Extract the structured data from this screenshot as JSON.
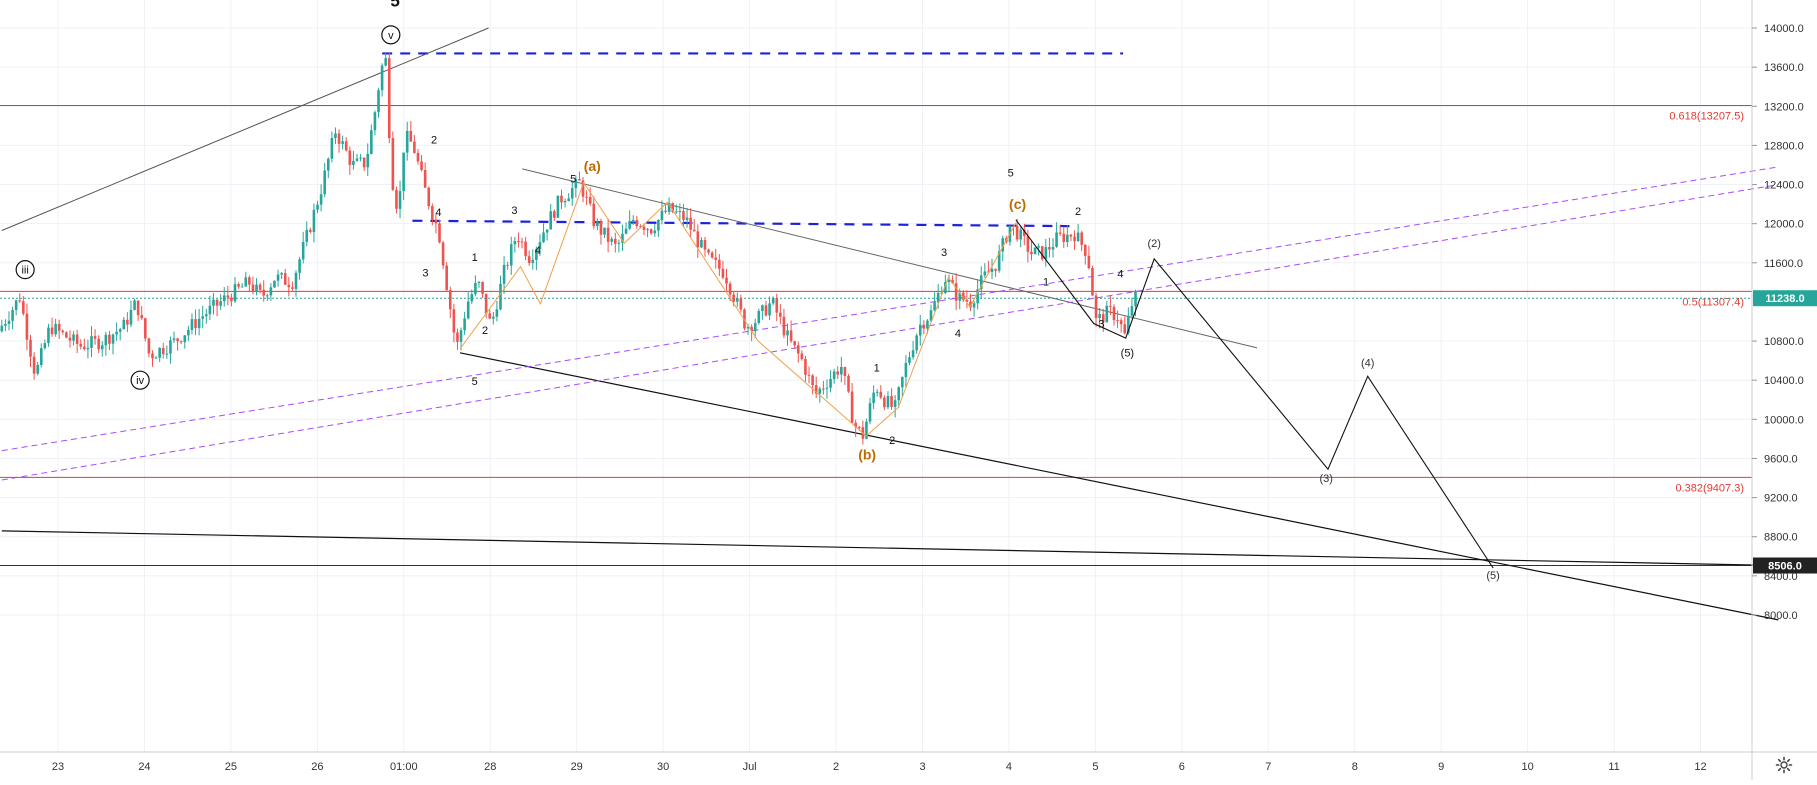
{
  "chart_data": {
    "type": "candlestick",
    "title": "",
    "xlabel": "",
    "ylabel": "",
    "colors": {
      "up": "#26a69a",
      "down": "#ef5350",
      "fib": "#e53935",
      "dashed_level": "#1e22d6",
      "channel": "#a64dff",
      "abc": "#f0a04a",
      "abc_text": "#c06a00",
      "line": "#111111",
      "price_label": "#26a69a",
      "dark_label": "#222222"
    },
    "y_range": [
      7700,
      14250
    ],
    "x_range": [
      22.35,
      12.9
    ],
    "x_ticks": [
      {
        "x": 23,
        "label": "23"
      },
      {
        "x": 24,
        "label": "24"
      },
      {
        "x": 25,
        "label": "25"
      },
      {
        "x": 26,
        "label": "26"
      },
      {
        "x": 27,
        "label": "01:00"
      },
      {
        "x": 28,
        "label": "28"
      },
      {
        "x": 29,
        "label": "29"
      },
      {
        "x": 30,
        "label": "30"
      },
      {
        "x": 31,
        "label": "Jul"
      },
      {
        "x": 32,
        "label": "2"
      },
      {
        "x": 33,
        "label": "3"
      },
      {
        "x": 34,
        "label": "4"
      },
      {
        "x": 35,
        "label": "5"
      },
      {
        "x": 36,
        "label": "6"
      },
      {
        "x": 37,
        "label": "7"
      },
      {
        "x": 38,
        "label": "8"
      },
      {
        "x": 39,
        "label": "9"
      },
      {
        "x": 40,
        "label": "10"
      },
      {
        "x": 41,
        "label": "11"
      },
      {
        "x": 42,
        "label": "12"
      }
    ],
    "y_ticks": [
      {
        "y": 14000,
        "label": "14000.0"
      },
      {
        "y": 13600,
        "label": "13600.0"
      },
      {
        "y": 13200,
        "label": "13200.0"
      },
      {
        "y": 12800,
        "label": "12800.0"
      },
      {
        "y": 12400,
        "label": "12400.0"
      },
      {
        "y": 12000,
        "label": "12000.0"
      },
      {
        "y": 11600,
        "label": "11600.0"
      },
      {
        "y": 10800,
        "label": "10800.0"
      },
      {
        "y": 10400,
        "label": "10400.0"
      },
      {
        "y": 10000,
        "label": "10000.0"
      },
      {
        "y": 9600,
        "label": "9600.0"
      },
      {
        "y": 9200,
        "label": "9200.0"
      },
      {
        "y": 8800,
        "label": "8800.0"
      },
      {
        "y": 8400,
        "label": "8400.0"
      },
      {
        "y": 8000,
        "label": "8000.0"
      }
    ],
    "price_labels": [
      {
        "y": 11238,
        "text": "11238.0",
        "color": "#26a69a"
      },
      {
        "y": 8506,
        "text": "8506.0",
        "color": "#222222"
      }
    ],
    "hlines": [
      {
        "y": 13207.5,
        "label": "0.618(13207.5)",
        "color": "#e53935",
        "style": "solid"
      },
      {
        "y": 11307.4,
        "label": "0.5(11307.4)",
        "color": "#e53935",
        "style": "solid"
      },
      {
        "y": 9407.3,
        "label": "0.382(9407.3)",
        "color": "#e53935",
        "style": "solid"
      },
      {
        "y": 11238,
        "label": "",
        "color": "#26a69a",
        "style": "dotted"
      },
      {
        "y": 8506,
        "label": "",
        "color": "#333333",
        "style": "solid"
      }
    ],
    "segments": [
      {
        "from": [
          26.75,
          13740
        ],
        "to": [
          35.32,
          13740
        ],
        "color": "#1e22d6",
        "dash": "10,8",
        "width": 2.2
      },
      {
        "from": [
          27.1,
          12030
        ],
        "to": [
          34.7,
          11975
        ],
        "color": "#1e22d6",
        "dash": "10,8",
        "width": 2.2
      },
      {
        "from": [
          22.35,
          11930
        ],
        "to": [
          27.98,
          14000
        ],
        "color": "#555555",
        "width": 1
      },
      {
        "from": [
          28.37,
          12560
        ],
        "to": [
          36.87,
          10730
        ],
        "color": "#666666",
        "width": 1
      },
      {
        "from": [
          27.65,
          10680
        ],
        "to": [
          42.9,
          7950
        ],
        "color": "#111111",
        "width": 1.2
      },
      {
        "from": [
          22.35,
          8860
        ],
        "to": [
          42.9,
          8506
        ],
        "color": "#111111",
        "width": 1.2
      },
      {
        "from": [
          22.35,
          9680
        ],
        "to": [
          42.9,
          12580
        ],
        "color": "#a64dff",
        "dash": "6,4",
        "width": 1
      },
      {
        "from": [
          22.35,
          9380
        ],
        "to": [
          42.9,
          12400
        ],
        "color": "#a64dff",
        "dash": "6,4",
        "width": 1
      }
    ],
    "polylines": [
      {
        "points": [
          [
            27.65,
            10720
          ],
          [
            28.35,
            11560
          ],
          [
            28.58,
            11180
          ],
          [
            29.08,
            12420
          ],
          [
            29.55,
            11800
          ],
          [
            30.05,
            12220
          ],
          [
            31.1,
            10800
          ],
          [
            32.35,
            9830
          ],
          [
            32.72,
            10120
          ],
          [
            33.3,
            11450
          ],
          [
            33.55,
            11150
          ],
          [
            34.08,
            12010
          ]
        ],
        "color": "#f0a04a",
        "width": 1
      },
      {
        "points": [
          [
            34.08,
            12040
          ],
          [
            34.98,
            10980
          ],
          [
            35.35,
            10830
          ],
          [
            35.68,
            11640
          ],
          [
            37.69,
            9490
          ],
          [
            38.15,
            10440
          ],
          [
            39.6,
            8480
          ]
        ],
        "color": "#111111",
        "width": 1.1
      }
    ],
    "labels": [
      {
        "x": 26.9,
        "y": 14220,
        "text": "5",
        "size": 17,
        "color": "#111111"
      },
      {
        "x": 27.35,
        "y": 12820,
        "text": "2",
        "size": 11,
        "color": "#111111"
      },
      {
        "x": 27.4,
        "y": 12080,
        "text": "4",
        "size": 11,
        "color": "#111111"
      },
      {
        "x": 27.25,
        "y": 11460,
        "text": "3",
        "size": 11,
        "color": "#111111"
      },
      {
        "x": 27.82,
        "y": 11620,
        "text": "1",
        "size": 11,
        "color": "#111111"
      },
      {
        "x": 27.94,
        "y": 10870,
        "text": "2",
        "size": 11,
        "color": "#111111"
      },
      {
        "x": 27.82,
        "y": 10350,
        "text": "5",
        "size": 11,
        "color": "#111111"
      },
      {
        "x": 28.28,
        "y": 12100,
        "text": "3",
        "size": 11,
        "color": "#111111"
      },
      {
        "x": 28.55,
        "y": 11690,
        "text": "4",
        "size": 11,
        "color": "#111111"
      },
      {
        "x": 28.96,
        "y": 12420,
        "text": "5",
        "size": 11,
        "color": "#111111"
      },
      {
        "x": 29.18,
        "y": 12540,
        "text": "(a)",
        "size": 14,
        "color": "#c06a00"
      },
      {
        "x": 32.47,
        "y": 10490,
        "text": "1",
        "size": 11,
        "color": "#111111"
      },
      {
        "x": 32.65,
        "y": 9750,
        "text": "2",
        "size": 11,
        "color": "#111111"
      },
      {
        "x": 32.36,
        "y": 9590,
        "text": "(b)",
        "size": 14,
        "color": "#c06a00"
      },
      {
        "x": 33.25,
        "y": 11670,
        "text": "3",
        "size": 11,
        "color": "#111111"
      },
      {
        "x": 33.41,
        "y": 10840,
        "text": "4",
        "size": 11,
        "color": "#111111"
      },
      {
        "x": 34.02,
        "y": 12480,
        "text": "5",
        "size": 11,
        "color": "#111111"
      },
      {
        "x": 34.1,
        "y": 12150,
        "text": "(c)",
        "size": 14,
        "color": "#c06a00"
      },
      {
        "x": 34.8,
        "y": 12090,
        "text": "2",
        "size": 11,
        "color": "#111111"
      },
      {
        "x": 34.43,
        "y": 11370,
        "text": "1",
        "size": 11,
        "color": "#111111"
      },
      {
        "x": 35.29,
        "y": 11450,
        "text": "4",
        "size": 11,
        "color": "#111111"
      },
      {
        "x": 35.07,
        "y": 10940,
        "text": "3",
        "size": 11,
        "color": "#111111"
      },
      {
        "x": 35.37,
        "y": 10640,
        "text": "(5)",
        "size": 11,
        "color": "#111111"
      },
      {
        "x": 35.68,
        "y": 11760,
        "text": "(2)",
        "size": 11,
        "color": "#333333"
      },
      {
        "x": 37.67,
        "y": 9360,
        "text": "(3)",
        "size": 11,
        "color": "#333333"
      },
      {
        "x": 38.15,
        "y": 10540,
        "text": "(4)",
        "size": 11,
        "color": "#333333"
      },
      {
        "x": 39.6,
        "y": 8370,
        "text": "(5)",
        "size": 11,
        "color": "#333333"
      }
    ],
    "circled_labels": [
      {
        "x": 26.85,
        "y": 13930,
        "text": "v"
      },
      {
        "x": 22.62,
        "y": 11530,
        "text": "iii"
      },
      {
        "x": 23.95,
        "y": 10400,
        "text": "iv"
      }
    ],
    "ohlc_anchor_points": [
      [
        22.35,
        10900
      ],
      [
        22.6,
        11250
      ],
      [
        22.78,
        10450
      ],
      [
        22.95,
        10950
      ],
      [
        23.3,
        10750
      ],
      [
        23.55,
        10800
      ],
      [
        23.8,
        10950
      ],
      [
        23.95,
        11200
      ],
      [
        24.1,
        10650
      ],
      [
        24.4,
        10800
      ],
      [
        24.7,
        11050
      ],
      [
        25.0,
        11250
      ],
      [
        25.25,
        11400
      ],
      [
        25.4,
        11250
      ],
      [
        25.55,
        11450
      ],
      [
        25.75,
        11400
      ],
      [
        25.95,
        11950
      ],
      [
        26.1,
        12400
      ],
      [
        26.25,
        12950
      ],
      [
        26.45,
        12600
      ],
      [
        26.6,
        12620
      ],
      [
        26.7,
        13100
      ],
      [
        26.78,
        13580
      ],
      [
        26.83,
        13700
      ],
      [
        26.9,
        12500
      ],
      [
        26.98,
        12100
      ],
      [
        27.05,
        12900
      ],
      [
        27.15,
        12800
      ],
      [
        27.3,
        12300
      ],
      [
        27.45,
        11900
      ],
      [
        27.65,
        10720
      ],
      [
        27.78,
        11200
      ],
      [
        27.9,
        11400
      ],
      [
        28.05,
        10950
      ],
      [
        28.2,
        11500
      ],
      [
        28.35,
        11900
      ],
      [
        28.5,
        11650
      ],
      [
        28.7,
        12000
      ],
      [
        28.85,
        12250
      ],
      [
        29.08,
        12420
      ],
      [
        29.25,
        12000
      ],
      [
        29.5,
        11750
      ],
      [
        29.7,
        12050
      ],
      [
        29.9,
        11950
      ],
      [
        30.1,
        12150
      ],
      [
        30.3,
        12050
      ],
      [
        30.55,
        11650
      ],
      [
        30.75,
        11500
      ],
      [
        31.0,
        10950
      ],
      [
        31.1,
        11000
      ],
      [
        31.3,
        11200
      ],
      [
        31.5,
        10800
      ],
      [
        31.65,
        10600
      ],
      [
        31.8,
        10250
      ],
      [
        31.95,
        10400
      ],
      [
        32.1,
        10550
      ],
      [
        32.25,
        9950
      ],
      [
        32.35,
        9830
      ],
      [
        32.5,
        10350
      ],
      [
        32.6,
        10200
      ],
      [
        32.72,
        10100
      ],
      [
        32.85,
        10550
      ],
      [
        33.0,
        10950
      ],
      [
        33.15,
        11100
      ],
      [
        33.3,
        11450
      ],
      [
        33.45,
        11250
      ],
      [
        33.6,
        11200
      ],
      [
        33.75,
        11450
      ],
      [
        33.9,
        11600
      ],
      [
        34.05,
        11980
      ],
      [
        34.15,
        11900
      ],
      [
        34.3,
        11700
      ],
      [
        34.45,
        11700
      ],
      [
        34.6,
        11850
      ],
      [
        34.8,
        11900
      ],
      [
        34.95,
        11700
      ],
      [
        35.05,
        11000
      ],
      [
        35.2,
        11100
      ],
      [
        35.3,
        11050
      ],
      [
        35.38,
        10850
      ],
      [
        35.48,
        11238
      ]
    ]
  }
}
